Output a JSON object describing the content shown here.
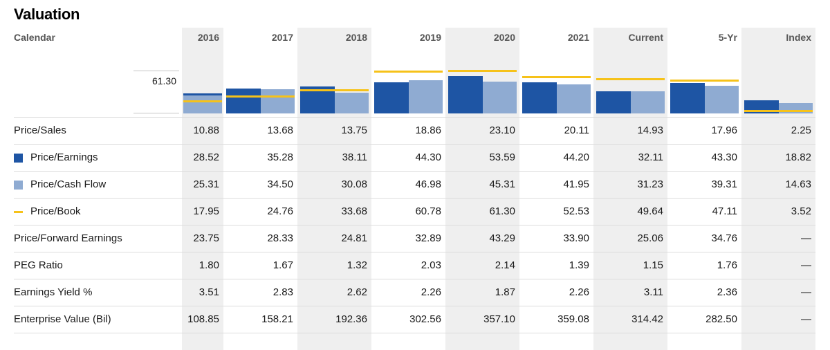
{
  "page": {
    "title": "Valuation"
  },
  "colors": {
    "price_earnings": "#1e55a4",
    "price_cash_flow": "#8fabd2",
    "price_book": "#f6c21a",
    "column_band": "#efefef",
    "separator": "#dcdcdc",
    "header_text": "#555555",
    "body_text": "#1a1a1a"
  },
  "table": {
    "corner_label": "Calendar",
    "columns": [
      "2016",
      "2017",
      "2018",
      "2019",
      "2020",
      "2021",
      "Current",
      "5-Yr",
      "Index"
    ],
    "shaded_columns": [
      0,
      2,
      4,
      6,
      8
    ],
    "rows": [
      {
        "label": "Price/Sales",
        "series_ref": null,
        "values": [
          "10.88",
          "13.68",
          "13.75",
          "18.86",
          "23.10",
          "20.11",
          "14.93",
          "17.96",
          "2.25"
        ]
      },
      {
        "label": "Price/Earnings",
        "series_ref": 0,
        "values": [
          "28.52",
          "35.28",
          "38.11",
          "44.30",
          "53.59",
          "44.20",
          "32.11",
          "43.30",
          "18.82"
        ]
      },
      {
        "label": "Price/Cash Flow",
        "series_ref": 1,
        "values": [
          "25.31",
          "34.50",
          "30.08",
          "46.98",
          "45.31",
          "41.95",
          "31.23",
          "39.31",
          "14.63"
        ]
      },
      {
        "label": "Price/Book",
        "series_ref": 2,
        "values": [
          "17.95",
          "24.76",
          "33.68",
          "60.78",
          "61.30",
          "52.53",
          "49.64",
          "47.11",
          "3.52"
        ]
      },
      {
        "label": "Price/Forward Earnings",
        "series_ref": null,
        "values": [
          "23.75",
          "28.33",
          "24.81",
          "32.89",
          "43.29",
          "33.90",
          "25.06",
          "34.76",
          "—"
        ]
      },
      {
        "label": "PEG Ratio",
        "series_ref": null,
        "values": [
          "1.80",
          "1.67",
          "1.32",
          "2.03",
          "2.14",
          "1.39",
          "1.15",
          "1.76",
          "—"
        ]
      },
      {
        "label": "Earnings Yield %",
        "series_ref": null,
        "values": [
          "3.51",
          "2.83",
          "2.62",
          "2.26",
          "1.87",
          "2.26",
          "3.11",
          "2.36",
          "—"
        ]
      },
      {
        "label": "Enterprise Value (Bil)",
        "series_ref": null,
        "values": [
          "108.85",
          "158.21",
          "192.36",
          "302.56",
          "357.10",
          "359.08",
          "314.42",
          "282.50",
          "—"
        ]
      }
    ]
  },
  "chart_data": {
    "type": "bar",
    "title": "Valuation",
    "categories": [
      "2016",
      "2017",
      "2018",
      "2019",
      "2020",
      "2021",
      "Current",
      "5-Yr",
      "Index"
    ],
    "series": [
      {
        "name": "Price/Earnings",
        "type": "bar",
        "color": "#1e55a4",
        "values": [
          28.52,
          35.28,
          38.11,
          44.3,
          53.59,
          44.2,
          32.11,
          43.3,
          18.82
        ]
      },
      {
        "name": "Price/Cash Flow",
        "type": "bar",
        "color": "#8fabd2",
        "values": [
          25.31,
          34.5,
          30.08,
          46.98,
          45.31,
          41.95,
          31.23,
          39.31,
          14.63
        ]
      },
      {
        "name": "Price/Book",
        "type": "line",
        "color": "#f6c21a",
        "values": [
          17.95,
          24.76,
          33.68,
          60.78,
          61.3,
          52.53,
          49.64,
          47.11,
          3.52
        ]
      }
    ],
    "xlabel": "",
    "ylabel": "",
    "ylim": [
      0,
      61.3
    ],
    "axis_max_label": "61.30",
    "grid": "top-and-baseline-ticks-only",
    "legend_position": "row-labels-left-column"
  }
}
